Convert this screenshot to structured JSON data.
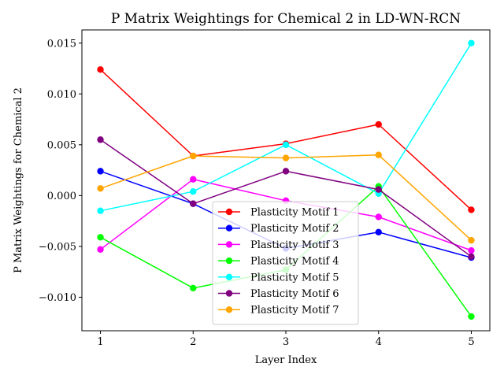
{
  "chart_data": {
    "type": "line",
    "title": "P Matrix Weightings for Chemical 2 in LD-WN-RCN",
    "xlabel": "Layer Index",
    "ylabel": "P Matrix Weightings for Chemical 2",
    "x": [
      1,
      2,
      3,
      4,
      5
    ],
    "x_ticks": [
      "1",
      "2",
      "3",
      "4",
      "5"
    ],
    "xlim": [
      0.8,
      5.2
    ],
    "ylim": [
      -0.0133,
      0.0163
    ],
    "y_ticks": [
      -0.01,
      -0.005,
      0.0,
      0.005,
      0.01,
      0.015
    ],
    "y_tick_labels": [
      "−0.010",
      "−0.005",
      "0.000",
      "0.005",
      "0.010",
      "0.015"
    ],
    "grid": false,
    "legend_position": "lower-center",
    "series": [
      {
        "name": "Plasticity Motif 1",
        "color": "#ff0000",
        "values": [
          0.0124,
          0.0039,
          0.0051,
          0.007,
          -0.0014
        ]
      },
      {
        "name": "Plasticity Motif 2",
        "color": "#0000ff",
        "values": [
          0.0024,
          -0.0008,
          -0.0052,
          -0.0036,
          -0.0061
        ]
      },
      {
        "name": "Plasticity Motif 3",
        "color": "#ff00ff",
        "values": [
          -0.0053,
          0.0016,
          -0.0005,
          -0.0021,
          -0.0054
        ]
      },
      {
        "name": "Plasticity Motif 4",
        "color": "#00ff00",
        "values": [
          -0.0041,
          -0.0091,
          -0.0073,
          0.0009,
          -0.0119
        ]
      },
      {
        "name": "Plasticity Motif 5",
        "color": "#00ffff",
        "values": [
          -0.0015,
          0.0004,
          0.005,
          0.0002,
          0.015
        ]
      },
      {
        "name": "Plasticity Motif 6",
        "color": "#800080",
        "values": [
          0.0055,
          -0.0008,
          0.0024,
          0.0006,
          -0.006
        ]
      },
      {
        "name": "Plasticity Motif 7",
        "color": "#ffa500",
        "values": [
          0.0007,
          0.0039,
          0.0037,
          0.004,
          -0.0044
        ]
      }
    ]
  }
}
